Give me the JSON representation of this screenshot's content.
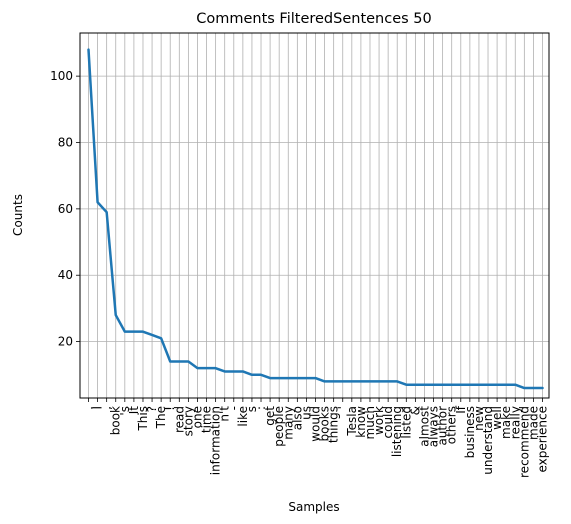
{
  "chart_data": {
    "type": "line",
    "title": "Comments FilteredSentences 50",
    "xlabel": "Samples",
    "ylabel": "Counts",
    "grid": true,
    "ylim": [
      3,
      113
    ],
    "yticks": [
      20,
      40,
      60,
      80,
      100
    ],
    "line_color": "#1f77b4",
    "categories": [
      ".",
      "I",
      ",",
      "book",
      "'s",
      "It",
      "This",
      "?",
      "The",
      "!",
      "read",
      "story",
      "one",
      "time",
      "information",
      "n't",
      "-",
      "like",
      "s",
      ":",
      "get",
      "people",
      "many",
      "also",
      "us",
      "would",
      "books",
      "things",
      "'",
      "Tesla",
      "know",
      "much",
      "work",
      "could",
      "listening",
      "listed",
      "&",
      "almost",
      "always",
      "author",
      "others",
      "If",
      "business",
      "new",
      "understand",
      "well",
      "make",
      "really",
      "recommend",
      "made",
      "experience"
    ],
    "series": [
      {
        "values": [
          108,
          62,
          59,
          28,
          23,
          23,
          23,
          22,
          21,
          14,
          14,
          14,
          12,
          12,
          12,
          11,
          11,
          11,
          10,
          10,
          9,
          9,
          9,
          9,
          9,
          9,
          8,
          8,
          8,
          8,
          8,
          8,
          8,
          8,
          8,
          7,
          7,
          7,
          7,
          7,
          7,
          7,
          7,
          7,
          7,
          7,
          7,
          7,
          6,
          6,
          6
        ]
      }
    ]
  }
}
